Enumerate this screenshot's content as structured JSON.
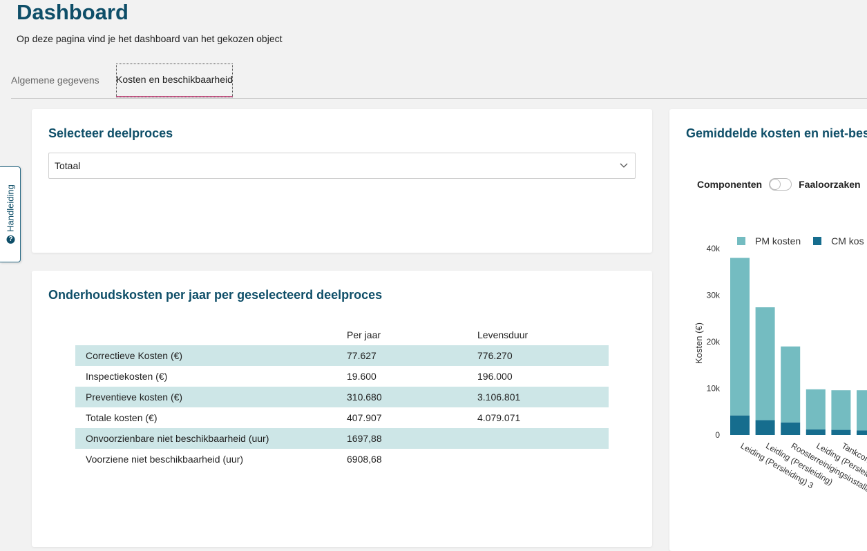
{
  "header": {
    "title": "Dashboard",
    "subtitle": "Op deze pagina vind je het dashboard van het gekozen object"
  },
  "tabs": [
    {
      "label": "Algemene gegevens",
      "active": false
    },
    {
      "label": "Kosten en beschikbaarheid",
      "active": true
    }
  ],
  "handleiding": {
    "label": "Handleiding",
    "icon": "question-circle-icon"
  },
  "deelproces_card": {
    "title": "Selecteer deelproces",
    "select_value": "Totaal"
  },
  "costs_card": {
    "title": "Onderhoudskosten per jaar per geselecteerd deelproces",
    "columns": [
      "",
      "Per jaar",
      "Levensduur"
    ],
    "rows": [
      {
        "label": "Correctieve Kosten (€)",
        "per_jaar": "77.627",
        "levensduur": "776.270"
      },
      {
        "label": "Inspectiekosten (€)",
        "per_jaar": "19.600",
        "levensduur": "196.000"
      },
      {
        "label": "Preventieve kosten (€)",
        "per_jaar": "310.680",
        "levensduur": "3.106.801"
      },
      {
        "label": "Totale kosten (€)",
        "per_jaar": "407.907",
        "levensduur": "4.079.071"
      },
      {
        "label": "Onvoorzienbare niet beschikbaarheid (uur)",
        "per_jaar": "1697,88",
        "levensduur": ""
      },
      {
        "label": "Voorziene niet beschikbaarheid (uur)",
        "per_jaar": "6908,68",
        "levensduur": ""
      }
    ]
  },
  "chart_card": {
    "title": "Gemiddelde kosten en niet-bes",
    "toggle_left": "Componenten",
    "toggle_right": "Faaloorzaken",
    "toggle_on": false
  },
  "chart_data": {
    "type": "bar",
    "stacked": true,
    "ylabel": "Kosten (€)",
    "ylim": [
      0,
      40000
    ],
    "yticks": [
      0,
      10000,
      20000,
      30000,
      40000
    ],
    "ytick_labels": [
      "0",
      "10k",
      "20k",
      "30k",
      "40k"
    ],
    "categories": [
      "Leiding (Persleiding) 3",
      "Leiding (Persleiding)",
      "Roosterreinigingsinstalla",
      "Leiding (Persleid",
      "Tankcon",
      ""
    ],
    "series": [
      {
        "name": "CM kos",
        "color": "#166d8e",
        "values": [
          4200,
          3200,
          2700,
          1200,
          1100,
          1000
        ]
      },
      {
        "name": "PM kosten",
        "color": "#74bcc1",
        "values": [
          33800,
          24200,
          16300,
          8600,
          8500,
          8600
        ]
      }
    ],
    "legend_order": [
      "PM kosten",
      "CM kos"
    ],
    "legend_position": "top"
  }
}
